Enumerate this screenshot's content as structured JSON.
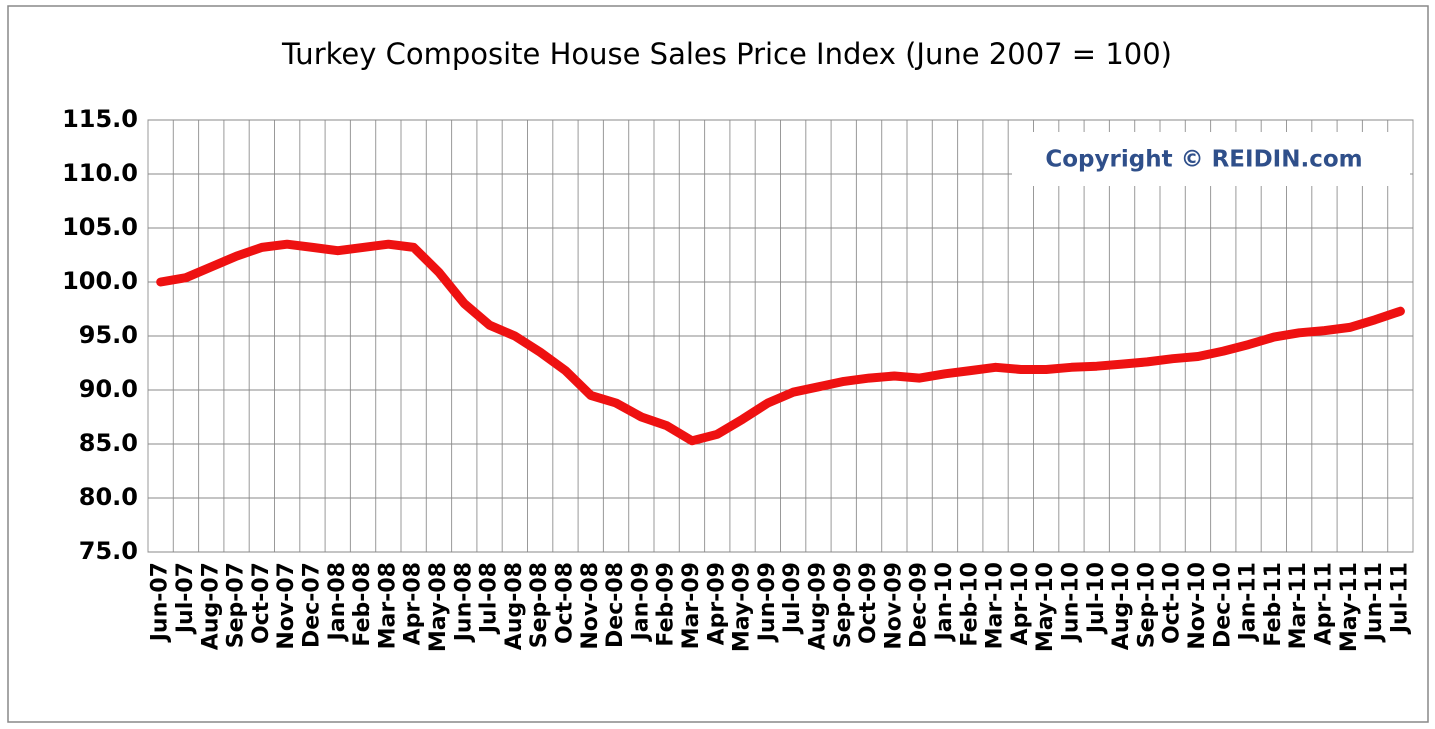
{
  "chart_data": {
    "type": "line",
    "title": "Turkey Composite House Sales Price Index (June 2007 = 100)",
    "annotation": "Copyright © REIDIN.com",
    "categories": [
      "Jun-07",
      "Jul-07",
      "Aug-07",
      "Sep-07",
      "Oct-07",
      "Nov-07",
      "Dec-07",
      "Jan-08",
      "Feb-08",
      "Mar-08",
      "Apr-08",
      "May-08",
      "Jun-08",
      "Jul-08",
      "Aug-08",
      "Sep-08",
      "Oct-08",
      "Nov-08",
      "Dec-08",
      "Jan-09",
      "Feb-09",
      "Mar-09",
      "Apr-09",
      "May-09",
      "Jun-09",
      "Jul-09",
      "Aug-09",
      "Sep-09",
      "Oct-09",
      "Nov-09",
      "Dec-09",
      "Jan-10",
      "Feb-10",
      "Mar-10",
      "Apr-10",
      "May-10",
      "Jun-10",
      "Jul-10",
      "Aug-10",
      "Sep-10",
      "Oct-10",
      "Nov-10",
      "Dec-10",
      "Jan-11",
      "Feb-11",
      "Mar-11",
      "Apr-11",
      "May-11",
      "Jun-11",
      "Jul-11"
    ],
    "values": [
      100.0,
      100.4,
      101.4,
      102.4,
      103.2,
      103.5,
      103.2,
      102.9,
      103.2,
      103.5,
      103.2,
      100.9,
      98.0,
      96.0,
      95.0,
      93.5,
      91.8,
      89.5,
      88.8,
      87.5,
      86.7,
      85.3,
      85.9,
      87.3,
      88.8,
      89.8,
      90.3,
      90.8,
      91.1,
      91.3,
      91.1,
      91.5,
      91.8,
      92.1,
      91.9,
      91.9,
      92.1,
      92.2,
      92.4,
      92.6,
      92.9,
      93.1,
      93.6,
      94.2,
      94.9,
      95.3,
      95.5,
      95.8,
      96.5,
      97.3
    ],
    "color": "#ee1111",
    "ylim": [
      75,
      115
    ],
    "yticks": [
      {
        "value": 75,
        "label": "75.0"
      },
      {
        "value": 80,
        "label": "80.0"
      },
      {
        "value": 85,
        "label": "85.0"
      },
      {
        "value": 90,
        "label": "90.0"
      },
      {
        "value": 95,
        "label": "95.0"
      },
      {
        "value": 100,
        "label": "100.0"
      },
      {
        "value": 105,
        "label": "105.0"
      },
      {
        "value": 110,
        "label": "110.0"
      },
      {
        "value": 115,
        "label": "115.0"
      }
    ],
    "grid": true
  }
}
